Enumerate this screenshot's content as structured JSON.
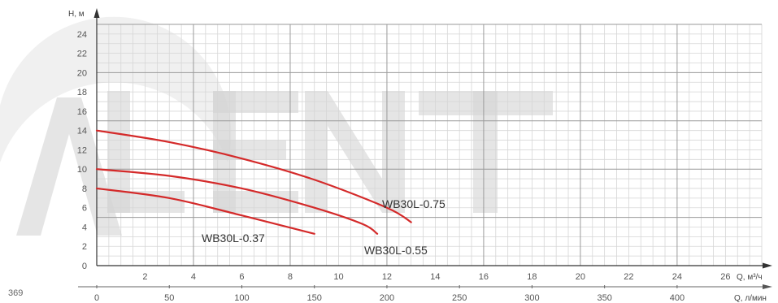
{
  "page_number": "369",
  "watermark": {
    "text": "LENT",
    "color": "#d4d4d4"
  },
  "chart_data": {
    "type": "line",
    "title": "",
    "ylabel": "H, м",
    "xlabel": "Q, м³/ч",
    "x2label": "Q, л/мин",
    "xlim": [
      0,
      27.5
    ],
    "ylim": [
      0,
      25
    ],
    "x_ticks": [
      "2",
      "4",
      "6",
      "8",
      "10",
      "12",
      "14",
      "16",
      "18",
      "20",
      "22",
      "24",
      "26"
    ],
    "y_ticks": [
      "0",
      "2",
      "4",
      "6",
      "8",
      "10",
      "12",
      "14",
      "16",
      "18",
      "20",
      "22",
      "24"
    ],
    "x2_ticks": [
      "0",
      "50",
      "100",
      "150",
      "200",
      "250",
      "300",
      "350",
      "400"
    ],
    "grid": true,
    "curve_color": "#d42a2a",
    "series": [
      {
        "name": "WB30L-0.75",
        "x": [
          0,
          3,
          6,
          9,
          12,
          13
        ],
        "y": [
          14,
          12.8,
          11.1,
          8.9,
          6.0,
          4.5
        ]
      },
      {
        "name": "WB30L-0.55",
        "x": [
          0,
          3,
          6,
          9,
          11,
          11.6
        ],
        "y": [
          10,
          9.3,
          8.0,
          6.0,
          4.3,
          3.3
        ]
      },
      {
        "name": "WB30L-0.37",
        "x": [
          0,
          3,
          6,
          9
        ],
        "y": [
          8,
          7.0,
          5.2,
          3.3
        ]
      }
    ]
  }
}
